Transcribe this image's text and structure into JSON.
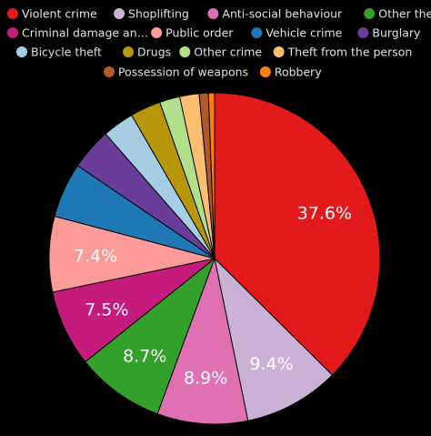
{
  "chart_data": {
    "type": "pie",
    "title": "",
    "legend_position": "top",
    "start_angle_deg": 0,
    "direction": "clockwise",
    "slices": [
      {
        "label": "Violent crime",
        "value": 37.6,
        "color": "#e31a1c",
        "value_label": "37.6%"
      },
      {
        "label": "Shoplifting",
        "value": 9.4,
        "color": "#cab2d6",
        "value_label": "9.4%"
      },
      {
        "label": "Anti-social behaviour",
        "value": 8.9,
        "color": "#df71b3",
        "value_label": "8.9%"
      },
      {
        "label": "Other theft",
        "value": 8.7,
        "color": "#33a02c",
        "value_label": "8.7%"
      },
      {
        "label": "Criminal damage an…",
        "value": 7.5,
        "color": "#c51b7d",
        "value_label": "7.5%"
      },
      {
        "label": "Public order",
        "value": 7.4,
        "color": "#fb9a99",
        "value_label": "7.4%"
      },
      {
        "label": "Vehicle crime",
        "value": 5.4,
        "color": "#1f78b4",
        "value_label": ""
      },
      {
        "label": "Burglary",
        "value": 4.1,
        "color": "#6a3d9a",
        "value_label": ""
      },
      {
        "label": "Bicycle theft",
        "value": 3.1,
        "color": "#a6cee3",
        "value_label": ""
      },
      {
        "label": "Drugs",
        "value": 3.0,
        "color": "#b8960b",
        "value_label": ""
      },
      {
        "label": "Other crime",
        "value": 2.0,
        "color": "#b2df8a",
        "value_label": ""
      },
      {
        "label": "Theft from the person",
        "value": 1.9,
        "color": "#fdbf6f",
        "value_label": ""
      },
      {
        "label": "Possession of weapons",
        "value": 0.9,
        "color": "#b15928",
        "value_label": ""
      },
      {
        "label": "Robbery",
        "value": 0.6,
        "color": "#ff7f00",
        "value_label": ""
      }
    ]
  }
}
